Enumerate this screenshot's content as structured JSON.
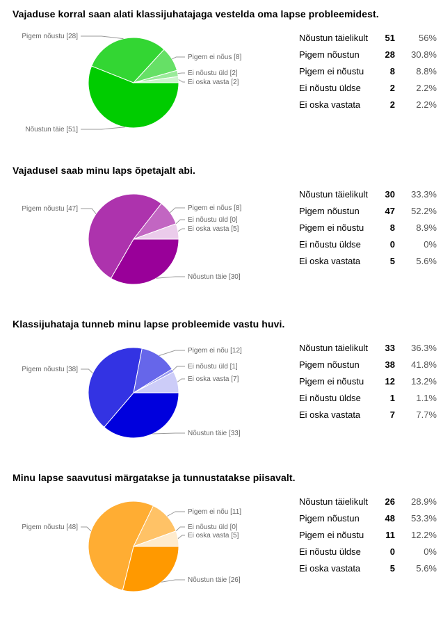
{
  "chart_data": [
    {
      "type": "pie",
      "title": "Vajaduse korral saan alati klassijuhatajaga vestelda oma lapse probleemidest.",
      "slices": [
        {
          "label": "Nõustun täie [51]",
          "value": 51,
          "color": "#00cc00"
        },
        {
          "label": "Pigem nõustu [28]",
          "value": 28,
          "color": "#33d633"
        },
        {
          "label": "Pigem ei nõus [8]",
          "value": 8,
          "color": "#66e066"
        },
        {
          "label": "Ei nõustu üld [2]",
          "value": 2,
          "color": "#99eb99"
        },
        {
          "label": "Ei oska vasta [2]",
          "value": 2,
          "color": "#ccf5cc"
        }
      ],
      "table": [
        {
          "category": "Nõustun täielikult",
          "count": "51",
          "percent": "56%"
        },
        {
          "category": "Pigem nõustun",
          "count": "28",
          "percent": "30.8%"
        },
        {
          "category": "Pigem ei nõustu",
          "count": "8",
          "percent": "8.8%"
        },
        {
          "category": "Ei nõustu üldse",
          "count": "2",
          "percent": "2.2%"
        },
        {
          "category": "Ei oska vastata",
          "count": "2",
          "percent": "2.2%"
        }
      ]
    },
    {
      "type": "pie",
      "title": "Vajadusel saab minu laps õpetajalt abi.",
      "slices": [
        {
          "label": "Nõustun täie [30]",
          "value": 30,
          "color": "#990099"
        },
        {
          "label": "Pigem nõustu [47]",
          "value": 47,
          "color": "#ad33ad"
        },
        {
          "label": "Pigem ei nõus [8]",
          "value": 8,
          "color": "#c266c2"
        },
        {
          "label": "Ei nõustu üld [0]",
          "value": 0,
          "color": "#d699d6"
        },
        {
          "label": "Ei oska vasta [5]",
          "value": 5,
          "color": "#ebccEB"
        }
      ],
      "table": [
        {
          "category": "Nõustun täielikult",
          "count": "30",
          "percent": "33.3%"
        },
        {
          "category": "Pigem nõustun",
          "count": "47",
          "percent": "52.2%"
        },
        {
          "category": "Pigem ei nõustu",
          "count": "8",
          "percent": "8.9%"
        },
        {
          "category": "Ei nõustu üldse",
          "count": "0",
          "percent": "0%"
        },
        {
          "category": "Ei oska vastata",
          "count": "5",
          "percent": "5.6%"
        }
      ]
    },
    {
      "type": "pie",
      "title": "Klassijuhataja tunneb minu lapse probleemide vastu huvi.",
      "slices": [
        {
          "label": "Nõustun täie [33]",
          "value": 33,
          "color": "#0000dd"
        },
        {
          "label": "Pigem nõustu [38]",
          "value": 38,
          "color": "#3333e3"
        },
        {
          "label": "Pigem ei nõu [12]",
          "value": 12,
          "color": "#6666ea"
        },
        {
          "label": "Ei nõustu üld [1]",
          "value": 1,
          "color": "#9999f1"
        },
        {
          "label": "Ei oska vasta [7]",
          "value": 7,
          "color": "#ccccf8"
        }
      ],
      "table": [
        {
          "category": "Nõustun täielikult",
          "count": "33",
          "percent": "36.3%"
        },
        {
          "category": "Pigem nõustun",
          "count": "38",
          "percent": "41.8%"
        },
        {
          "category": "Pigem ei nõustu",
          "count": "12",
          "percent": "13.2%"
        },
        {
          "category": "Ei nõustu üldse",
          "count": "1",
          "percent": "1.1%"
        },
        {
          "category": "Ei oska vastata",
          "count": "7",
          "percent": "7.7%"
        }
      ]
    },
    {
      "type": "pie",
      "title": "Minu lapse saavutusi märgatakse ja tunnustatakse piisavalt.",
      "slices": [
        {
          "label": "Nõustun täie [26]",
          "value": 26,
          "color": "#ff9900"
        },
        {
          "label": "Pigem nõustu [48]",
          "value": 48,
          "color": "#ffad33"
        },
        {
          "label": "Pigem ei nõu [11]",
          "value": 11,
          "color": "#ffc266"
        },
        {
          "label": "Ei nõustu üld [0]",
          "value": 0,
          "color": "#ffd699"
        },
        {
          "label": "Ei oska vasta [5]",
          "value": 5,
          "color": "#ffebcc"
        }
      ],
      "table": [
        {
          "category": "Nõustun täielikult",
          "count": "26",
          "percent": "28.9%"
        },
        {
          "category": "Pigem nõustun",
          "count": "48",
          "percent": "53.3%"
        },
        {
          "category": "Pigem ei nõustu",
          "count": "11",
          "percent": "12.2%"
        },
        {
          "category": "Ei nõustu üldse",
          "count": "0",
          "percent": "0%"
        },
        {
          "category": "Ei oska vastata",
          "count": "5",
          "percent": "5.6%"
        }
      ]
    }
  ]
}
